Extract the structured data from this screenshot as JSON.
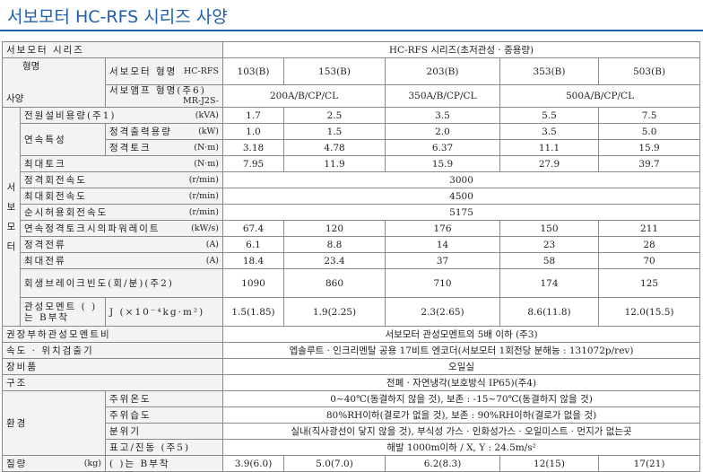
{
  "title": "서보모터 HC-RFS 시리즈 사양",
  "header": {
    "series_label": "서보모터 시리즈",
    "series_value": "HC-RFS 시리즈(초저관성 · 중용량)",
    "corner_top": "형명",
    "corner_bottom": "사양",
    "motor_model_label": "서보모터 형명",
    "motor_model_prefix": "HC-RFS",
    "models": [
      "103(B)",
      "153(B)",
      "203(B)",
      "353(B)",
      "503(B)"
    ],
    "amp_label": "서보앰프 형명(주6)",
    "amp_prefix": "MR-J2S-",
    "amps": [
      "200A/B/CP/CL",
      "350A/B/CP/CL",
      "500A/B/CP/CL"
    ]
  },
  "side_label": "서보모터",
  "rows": [
    {
      "label": "전원설비용량(주1)",
      "unit": "(kVA)",
      "values": [
        "1.7",
        "2.5",
        "3.5",
        "5.5",
        "7.5"
      ]
    },
    {
      "group": "연속특성",
      "label": "정격출력용량",
      "unit": "(kW)",
      "values": [
        "1.0",
        "1.5",
        "2.0",
        "3.5",
        "5.0"
      ]
    },
    {
      "label": "정격토크",
      "unit": "(N·m)",
      "values": [
        "3.18",
        "4.78",
        "6.37",
        "11.1",
        "15.9"
      ]
    },
    {
      "label": "최대토크",
      "unit": "(N·m)",
      "values": [
        "7.95",
        "11.9",
        "15.9",
        "27.9",
        "39.7"
      ]
    },
    {
      "label": "정격회전속도",
      "unit": "(r/min)",
      "value": "3000"
    },
    {
      "label": "최대회전속도",
      "unit": "(r/min)",
      "value": "4500"
    },
    {
      "label": "순시허용회전속도",
      "unit": "(r/min)",
      "value": "5175"
    },
    {
      "label": "연속정격토크시의파워레이트",
      "unit": "(kW/s)",
      "values": [
        "67.4",
        "120",
        "176",
        "150",
        "211"
      ]
    },
    {
      "label": "정격전류",
      "unit": "(A)",
      "values": [
        "6.1",
        "8.8",
        "14",
        "23",
        "28"
      ]
    },
    {
      "label": "최대전류",
      "unit": "(A)",
      "values": [
        "18.4",
        "23.4",
        "37",
        "58",
        "70"
      ]
    },
    {
      "label": "회생브레이크빈도(회/분)(주2)",
      "values": [
        "1090",
        "860",
        "710",
        "174",
        "125"
      ]
    },
    {
      "label": "관성모멘트 ( )는 B부착",
      "sublabel": "J (×10⁻⁴kg·m²)",
      "values": [
        "1.5(1.85)",
        "1.9(2.25)",
        "2.3(2.65)",
        "8.6(11.8)",
        "12.0(15.5)"
      ]
    }
  ],
  "specs": [
    {
      "label": "권장부하관성모멘트비",
      "text": "서보모터 관성모멘트의 5배 이하 (주3)"
    },
    {
      "label": "속도 · 위치검출기",
      "text": "엡솔루트 · 인크리멘탈 공용 17비트 엔코더(서보모터 1회전당 분해능 : 131072p/rev)"
    },
    {
      "label": "장비품",
      "text": "오일실"
    },
    {
      "label": "구조",
      "text": "전폐 · 자연냉각(보호방식 IP65)(주4)"
    }
  ],
  "environment": {
    "label": "환경",
    "items": [
      {
        "label": "주위온도",
        "text": "0~40℃(동결하지 않을 것), 보존 : -15~70℃(동결하지 않을 것)"
      },
      {
        "label": "주위습도",
        "text": "80%RH이하(결로가 없을 것), 보존 : 90%RH이하(결로가 없을 것)"
      },
      {
        "label": "분위기",
        "text": "실내(직사광선이 닿지 않을 것), 부식성 가스 · 인화성가스 · 오일미스트 · 먼지가 없는곳"
      },
      {
        "label": "표고/진동 (주5)",
        "text": "해발 1000m이하 / X, Y : 24.5m/s²"
      }
    ]
  },
  "mass": {
    "label": "질량",
    "unit": "(kg)",
    "note": "( )는 B부착",
    "values": [
      "3.9(6.0)",
      "5.0(7.0)",
      "6.2(8.3)",
      "12(15)",
      "17(21)"
    ]
  }
}
